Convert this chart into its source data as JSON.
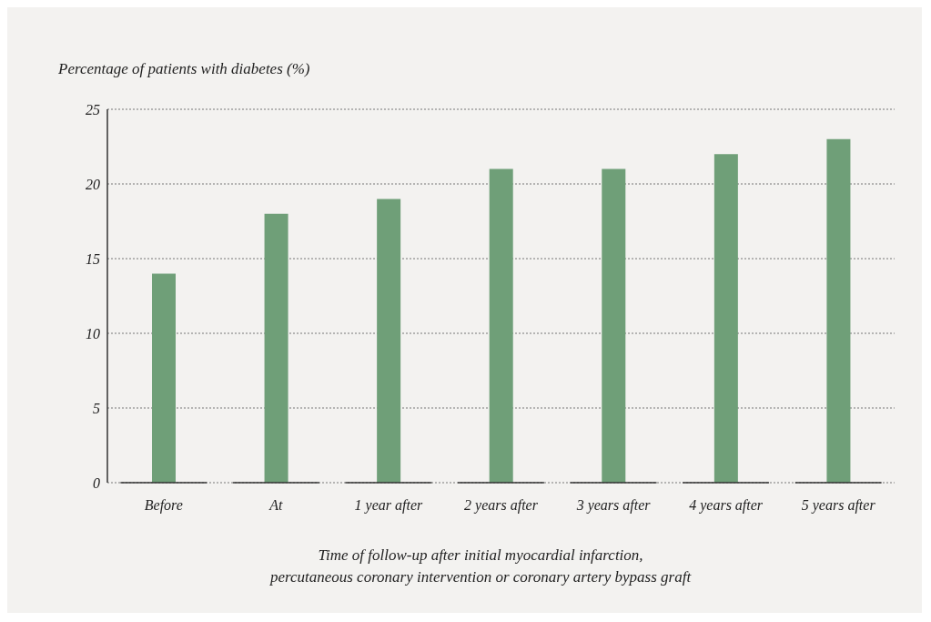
{
  "chart_data": {
    "type": "bar",
    "ylabel": "Percentage of patients with diabetes (%)",
    "xlabel": "Time of follow-up after initial myocardial infarction,\npercutaneous coronary intervention or coronary artery bypass graft",
    "categories": [
      "Before",
      "At",
      "1 year after",
      "2 years after",
      "3 years after",
      "4 years after",
      "5 years after"
    ],
    "values": [
      14,
      18,
      19,
      21,
      21,
      22,
      23
    ],
    "color": "#6f9f78",
    "ylim": [
      0,
      25
    ],
    "yticks": [
      0,
      5,
      10,
      15,
      20,
      25
    ],
    "grid": "y"
  }
}
